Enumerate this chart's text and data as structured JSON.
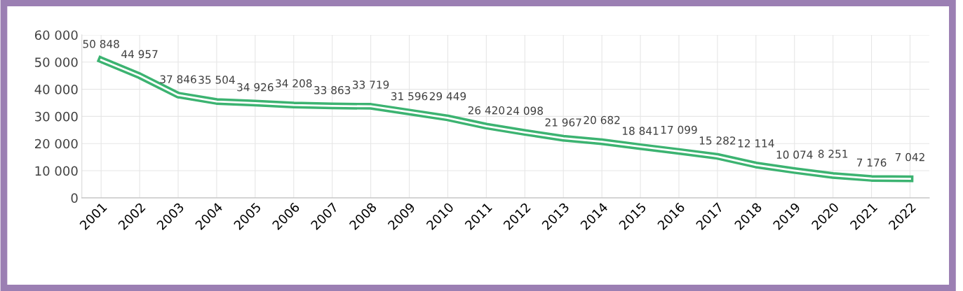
{
  "chart_data": {
    "type": "line",
    "categories": [
      "2001",
      "2002",
      "2003",
      "2004",
      "2005",
      "2006",
      "2007",
      "2008",
      "2009",
      "2010",
      "2011",
      "2012",
      "2013",
      "2014",
      "2015",
      "2016",
      "2017",
      "2018",
      "2019",
      "2020",
      "2021",
      "2022"
    ],
    "series": [
      {
        "color": "#3cb371",
        "values": [
          50848,
          44957,
          37846,
          35504,
          34926,
          34208,
          33863,
          33719,
          31596,
          29449,
          26420,
          24098,
          21967,
          20682,
          18841,
          17099,
          15282,
          12114,
          10074,
          8251,
          7176,
          7042
        ]
      }
    ],
    "ylim": [
      0,
      60000
    ],
    "yticks": [
      {
        "value": 0,
        "label": "0"
      },
      {
        "value": 10000,
        "label": "10 000"
      },
      {
        "value": 20000,
        "label": "20 000"
      },
      {
        "value": 30000,
        "label": "30 000"
      },
      {
        "value": 40000,
        "label": "40 000"
      },
      {
        "value": 50000,
        "label": "50 000"
      },
      {
        "value": 60000,
        "label": "60 000"
      }
    ],
    "grid": true,
    "data_labels": true,
    "marker": "none",
    "line_style": "solid"
  }
}
